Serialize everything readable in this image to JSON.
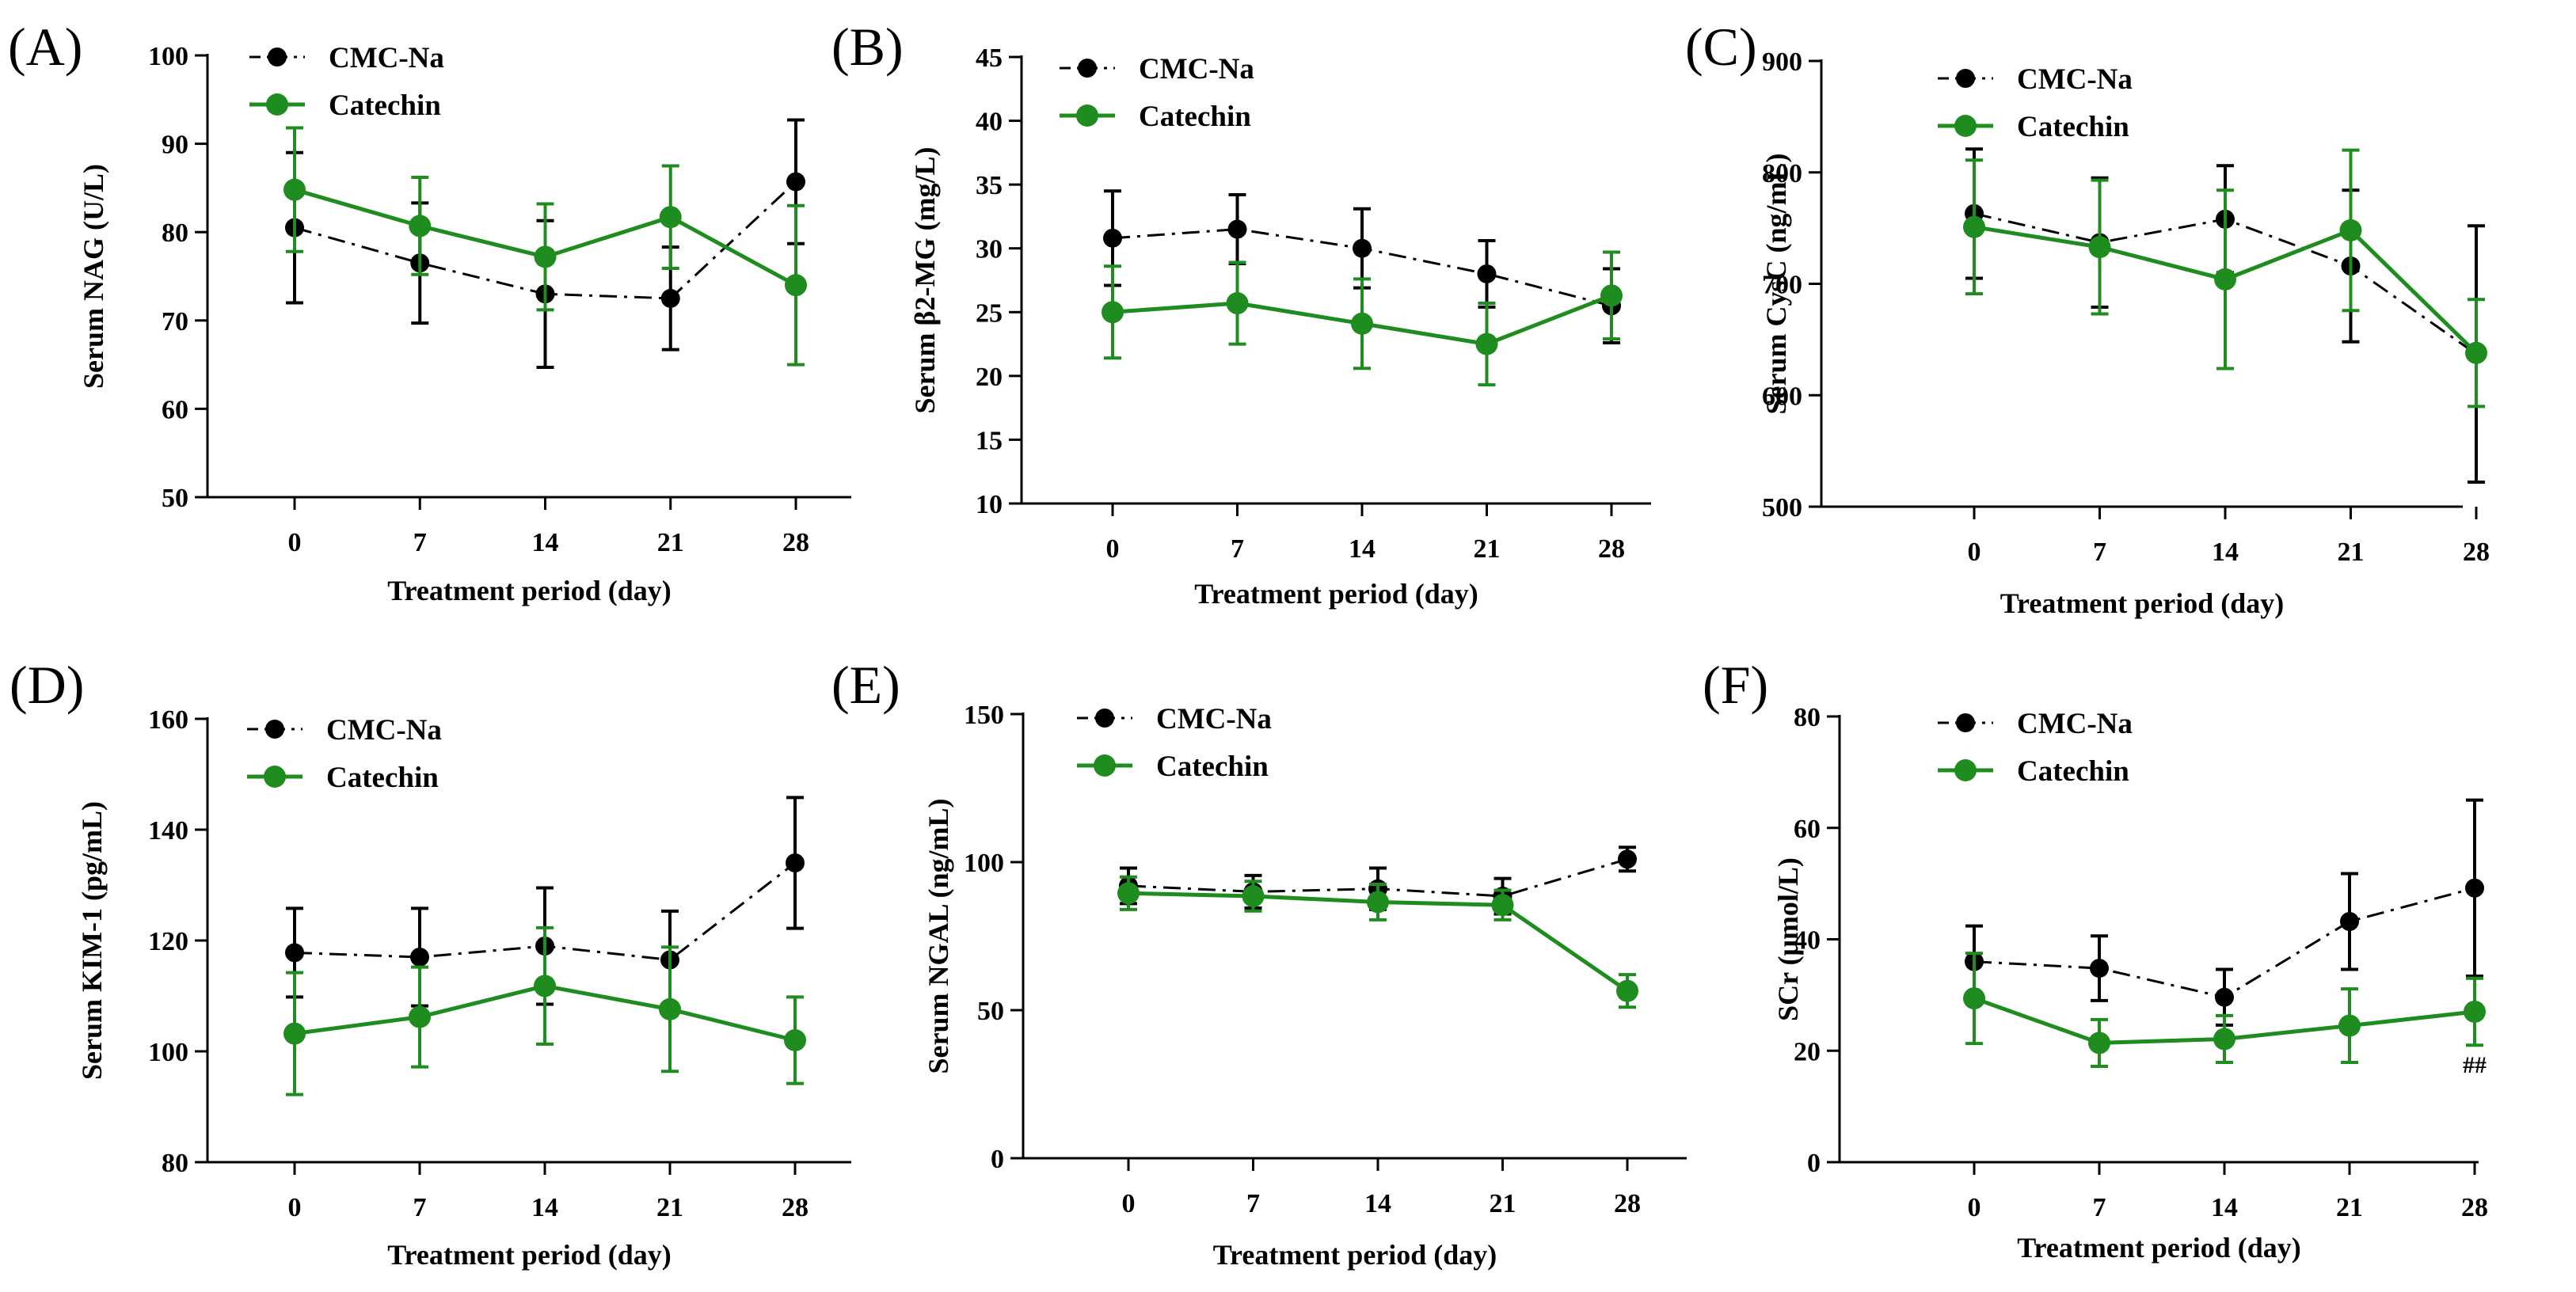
{
  "colors": {
    "cmc": "#000000",
    "catechin": "#1e8c1e"
  },
  "chart_data": [
    {
      "type": "line",
      "letter": "(A)",
      "ylabel": "Serum NAG (U/L)",
      "xlabel": "Treatment period (day)",
      "x": [
        0,
        7,
        14,
        21,
        28
      ],
      "xticks": [
        "0",
        "7",
        "14",
        "21",
        "28"
      ],
      "ylim": [
        50,
        100
      ],
      "yticks": [
        50,
        60,
        70,
        80,
        90,
        100
      ],
      "series": [
        {
          "name": "CMC-Na",
          "values": [
            80.5,
            76.5,
            73,
            72.5,
            85.7
          ],
          "errors": [
            8.5,
            6.8,
            8.3,
            5.8,
            7
          ]
        },
        {
          "name": "Catechin",
          "values": [
            84.8,
            80.7,
            77.2,
            81.7,
            74
          ],
          "errors": [
            7,
            5.5,
            6,
            5.8,
            9
          ]
        }
      ],
      "annotations": []
    },
    {
      "type": "line",
      "letter": "(B)",
      "ylabel": "Serum β2-MG (mg/L)",
      "xlabel": "Treatment period (day)",
      "x": [
        0,
        7,
        14,
        21,
        28
      ],
      "xticks": [
        "0",
        "7",
        "14",
        "21",
        "28"
      ],
      "ylim": [
        10,
        45
      ],
      "yticks": [
        10,
        15,
        20,
        25,
        30,
        35,
        40,
        45
      ],
      "series": [
        {
          "name": "CMC-Na",
          "values": [
            30.8,
            31.5,
            30,
            28,
            25.5
          ],
          "errors": [
            3.7,
            2.7,
            3.1,
            2.6,
            2.9
          ]
        },
        {
          "name": "Catechin",
          "values": [
            25,
            25.7,
            24.1,
            22.5,
            26.3
          ],
          "errors": [
            3.6,
            3.2,
            3.5,
            3.2,
            3.4
          ]
        }
      ],
      "annotations": []
    },
    {
      "type": "line",
      "letter": "(C)",
      "ylabel": "Serum CysC (ng/mL)",
      "xlabel": "Treatment period (day)",
      "x": [
        0,
        7,
        14,
        21,
        28
      ],
      "xticks": [
        "0",
        "7",
        "14",
        "21",
        "28"
      ],
      "ylim": [
        500,
        900
      ],
      "yticks": [
        500,
        600,
        700,
        800,
        900
      ],
      "series": [
        {
          "name": "CMC-Na",
          "values": [
            763,
            737,
            758,
            716,
            637
          ],
          "errors": [
            58,
            58,
            48,
            68,
            115
          ]
        },
        {
          "name": "Catechin",
          "values": [
            751,
            733,
            704,
            748,
            638
          ],
          "errors": [
            60,
            60,
            80,
            72,
            48
          ]
        }
      ],
      "annotations": []
    },
    {
      "type": "line",
      "letter": "(D)",
      "ylabel": "Serum KIM-1 (pg/mL)",
      "xlabel": "Treatment period (day)",
      "x": [
        0,
        7,
        14,
        21,
        28
      ],
      "xticks": [
        "0",
        "7",
        "14",
        "21",
        "28"
      ],
      "ylim": [
        80,
        160
      ],
      "yticks": [
        80,
        100,
        120,
        140,
        160
      ],
      "series": [
        {
          "name": "CMC-Na",
          "values": [
            117.8,
            117,
            119,
            116.5,
            134
          ],
          "errors": [
            8,
            8.8,
            10.5,
            8.8,
            11.8
          ]
        },
        {
          "name": "Catechin",
          "values": [
            103.2,
            106.2,
            111.8,
            107.6,
            102
          ],
          "errors": [
            11,
            9,
            10.5,
            11.2,
            7.8
          ]
        }
      ],
      "annotations": []
    },
    {
      "type": "line",
      "letter": "(E)",
      "ylabel": "Serum NGAL (ng/mL)",
      "xlabel": "Treatment period (day)",
      "x": [
        0,
        7,
        14,
        21,
        28
      ],
      "xticks": [
        "0",
        "7",
        "14",
        "21",
        "28"
      ],
      "ylim": [
        0,
        150
      ],
      "yticks": [
        0,
        50,
        100,
        150
      ],
      "series": [
        {
          "name": "CMC-Na",
          "values": [
            92,
            90,
            91,
            88.5,
            101
          ],
          "errors": [
            6,
            5.5,
            7,
            6,
            4
          ]
        },
        {
          "name": "Catechin",
          "values": [
            89.5,
            88.5,
            86.5,
            85.5,
            56.5
          ],
          "errors": [
            5.5,
            5,
            6,
            5,
            5.5
          ]
        }
      ],
      "annotations": []
    },
    {
      "type": "line",
      "letter": "(F)",
      "ylabel": "SCr (μmol/L)",
      "xlabel": "Treatment period (day)",
      "x": [
        0,
        7,
        14,
        21,
        28
      ],
      "xticks": [
        "0",
        "7",
        "14",
        "21",
        "28"
      ],
      "ylim": [
        0,
        80
      ],
      "yticks": [
        0,
        20,
        40,
        60,
        80
      ],
      "series": [
        {
          "name": "CMC-Na",
          "values": [
            36,
            34.8,
            29.6,
            43.2,
            49.2
          ],
          "errors": [
            6.4,
            5.8,
            5,
            8.6,
            15.8
          ]
        },
        {
          "name": "Catechin",
          "values": [
            29.4,
            21.4,
            22.1,
            24.5,
            27
          ],
          "errors": [
            8.1,
            4.2,
            4.2,
            6.6,
            6
          ]
        }
      ],
      "annotations": [
        {
          "text": "##",
          "x": 28,
          "y": 17.5
        }
      ]
    }
  ]
}
